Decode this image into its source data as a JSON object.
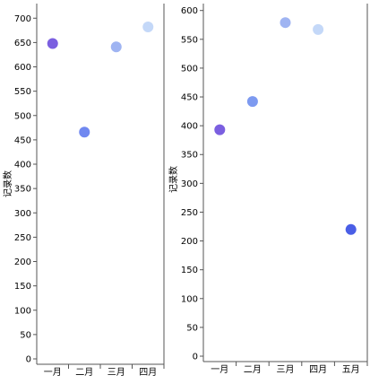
{
  "chart_data": [
    {
      "type": "scatter",
      "ylabel": "记录数",
      "categories": [
        "一月",
        "二月",
        "三月",
        "四月"
      ],
      "values": [
        648,
        466,
        641,
        682
      ],
      "colors": [
        "#7b5fe0",
        "#7088f0",
        "#9fb4f2",
        "#c4d8f8"
      ],
      "yticks": [
        0,
        50,
        100,
        150,
        200,
        250,
        300,
        350,
        400,
        450,
        500,
        550,
        600,
        650,
        700
      ],
      "ylim": [
        0,
        730
      ]
    },
    {
      "type": "scatter",
      "ylabel": "记录数",
      "categories": [
        "一月",
        "二月",
        "三月",
        "四月",
        "五月"
      ],
      "values": [
        393,
        442,
        579,
        567,
        220
      ],
      "colors": [
        "#7b5fe0",
        "#7d9af0",
        "#9fb4f2",
        "#c4d8f8",
        "#4a5ee6"
      ],
      "yticks": [
        0,
        50,
        100,
        150,
        200,
        250,
        300,
        350,
        400,
        450,
        500,
        550,
        600
      ],
      "ylim": [
        0,
        612
      ]
    }
  ]
}
